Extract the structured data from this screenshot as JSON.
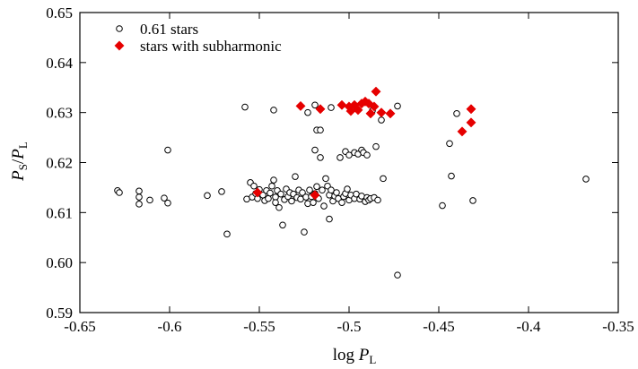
{
  "chart_data": {
    "type": "scatter",
    "title": "",
    "xlabel": {
      "prefix": "log ",
      "symbol": "P",
      "subscript": "L"
    },
    "ylabel": {
      "num_symbol": "P",
      "num_subscript": "S",
      "sep": "/",
      "den_symbol": "P",
      "den_subscript": "L"
    },
    "xlim": [
      -0.65,
      -0.35
    ],
    "ylim": [
      0.59,
      0.65
    ],
    "xticks": [
      "-0.65",
      "-0.6",
      "-0.55",
      "-0.5",
      "-0.45",
      "-0.4",
      "-0.35"
    ],
    "yticks": [
      "0.59",
      "0.60",
      "0.61",
      "0.62",
      "0.63",
      "0.64",
      "0.65"
    ],
    "xtick_values": [
      -0.65,
      -0.6,
      -0.55,
      -0.5,
      -0.45,
      -0.4,
      -0.35
    ],
    "ytick_values": [
      0.59,
      0.6,
      0.61,
      0.62,
      0.63,
      0.64,
      0.65
    ],
    "grid": false,
    "legend_position": "top-left",
    "series": [
      {
        "name": "0.61 stars",
        "marker": "open-circle",
        "color": "#000000",
        "points": [
          [
            -0.629,
            0.6144
          ],
          [
            -0.628,
            0.614
          ],
          [
            -0.617,
            0.6143
          ],
          [
            -0.617,
            0.6131
          ],
          [
            -0.617,
            0.6117
          ],
          [
            -0.611,
            0.6125
          ],
          [
            -0.603,
            0.6129
          ],
          [
            -0.601,
            0.6119
          ],
          [
            -0.601,
            0.6225
          ],
          [
            -0.579,
            0.6134
          ],
          [
            -0.571,
            0.6142
          ],
          [
            -0.568,
            0.6057
          ],
          [
            -0.558,
            0.6311
          ],
          [
            -0.557,
            0.6127
          ],
          [
            -0.555,
            0.616
          ],
          [
            -0.554,
            0.6131
          ],
          [
            -0.553,
            0.6153
          ],
          [
            -0.552,
            0.6138
          ],
          [
            -0.551,
            0.6128
          ],
          [
            -0.55,
            0.6146
          ],
          [
            -0.548,
            0.6135
          ],
          [
            -0.547,
            0.6124
          ],
          [
            -0.546,
            0.6144
          ],
          [
            -0.545,
            0.6128
          ],
          [
            -0.544,
            0.6139
          ],
          [
            -0.543,
            0.6153
          ],
          [
            -0.542,
            0.6305
          ],
          [
            -0.542,
            0.6165
          ],
          [
            -0.541,
            0.6131
          ],
          [
            -0.541,
            0.612
          ],
          [
            -0.54,
            0.6144
          ],
          [
            -0.539,
            0.611
          ],
          [
            -0.538,
            0.6137
          ],
          [
            -0.537,
            0.6075
          ],
          [
            -0.536,
            0.6126
          ],
          [
            -0.535,
            0.6147
          ],
          [
            -0.534,
            0.6132
          ],
          [
            -0.533,
            0.614
          ],
          [
            -0.532,
            0.6123
          ],
          [
            -0.531,
            0.6137
          ],
          [
            -0.53,
            0.6172
          ],
          [
            -0.529,
            0.613
          ],
          [
            -0.528,
            0.6145
          ],
          [
            -0.527,
            0.6127
          ],
          [
            -0.526,
            0.614
          ],
          [
            -0.525,
            0.6061
          ],
          [
            -0.524,
            0.6131
          ],
          [
            -0.523,
            0.63
          ],
          [
            -0.523,
            0.6118
          ],
          [
            -0.522,
            0.6145
          ],
          [
            -0.521,
            0.6132
          ],
          [
            -0.52,
            0.612
          ],
          [
            -0.519,
            0.6315
          ],
          [
            -0.519,
            0.6225
          ],
          [
            -0.519,
            0.6138
          ],
          [
            -0.518,
            0.6265
          ],
          [
            -0.518,
            0.6152
          ],
          [
            -0.517,
            0.6128
          ],
          [
            -0.516,
            0.6265
          ],
          [
            -0.516,
            0.621
          ],
          [
            -0.515,
            0.6145
          ],
          [
            -0.514,
            0.6113
          ],
          [
            -0.513,
            0.6168
          ],
          [
            -0.512,
            0.6153
          ],
          [
            -0.511,
            0.6087
          ],
          [
            -0.511,
            0.6135
          ],
          [
            -0.51,
            0.631
          ],
          [
            -0.51,
            0.6145
          ],
          [
            -0.509,
            0.6123
          ],
          [
            -0.508,
            0.6133
          ],
          [
            -0.507,
            0.614
          ],
          [
            -0.506,
            0.6128
          ],
          [
            -0.505,
            0.621
          ],
          [
            -0.504,
            0.612
          ],
          [
            -0.503,
            0.6132
          ],
          [
            -0.502,
            0.6222
          ],
          [
            -0.502,
            0.6138
          ],
          [
            -0.501,
            0.6147
          ],
          [
            -0.5,
            0.6215
          ],
          [
            -0.5,
            0.6125
          ],
          [
            -0.499,
            0.6135
          ],
          [
            -0.498,
            0.631
          ],
          [
            -0.497,
            0.622
          ],
          [
            -0.497,
            0.6128
          ],
          [
            -0.496,
            0.6137
          ],
          [
            -0.495,
            0.6217
          ],
          [
            -0.494,
            0.6127
          ],
          [
            -0.493,
            0.6225
          ],
          [
            -0.493,
            0.6133
          ],
          [
            -0.492,
            0.622
          ],
          [
            -0.491,
            0.6122
          ],
          [
            -0.49,
            0.6215
          ],
          [
            -0.49,
            0.613
          ],
          [
            -0.489,
            0.6125
          ],
          [
            -0.488,
            0.6128
          ],
          [
            -0.487,
            0.6304
          ],
          [
            -0.486,
            0.613
          ],
          [
            -0.485,
            0.6232
          ],
          [
            -0.484,
            0.6125
          ],
          [
            -0.482,
            0.6285
          ],
          [
            -0.481,
            0.6168
          ],
          [
            -0.473,
            0.5975
          ],
          [
            -0.473,
            0.6313
          ],
          [
            -0.448,
            0.6114
          ],
          [
            -0.444,
            0.6238
          ],
          [
            -0.443,
            0.6173
          ],
          [
            -0.44,
            0.6298
          ],
          [
            -0.431,
            0.6124
          ],
          [
            -0.368,
            0.6167
          ]
        ]
      },
      {
        "name": "stars with subharmonic",
        "marker": "filled-diamond",
        "color": "#e60000",
        "points": [
          [
            -0.551,
            0.614
          ],
          [
            -0.527,
            0.6313
          ],
          [
            -0.519,
            0.6135
          ],
          [
            -0.516,
            0.6307
          ],
          [
            -0.504,
            0.6315
          ],
          [
            -0.5,
            0.6312
          ],
          [
            -0.499,
            0.6303
          ],
          [
            -0.497,
            0.6315
          ],
          [
            -0.495,
            0.6305
          ],
          [
            -0.493,
            0.6318
          ],
          [
            -0.491,
            0.6322
          ],
          [
            -0.489,
            0.6318
          ],
          [
            -0.488,
            0.6298
          ],
          [
            -0.486,
            0.6312
          ],
          [
            -0.485,
            0.6342
          ],
          [
            -0.482,
            0.63
          ],
          [
            -0.477,
            0.6298
          ],
          [
            -0.437,
            0.6262
          ],
          [
            -0.432,
            0.628
          ],
          [
            -0.432,
            0.6307
          ]
        ]
      }
    ]
  }
}
